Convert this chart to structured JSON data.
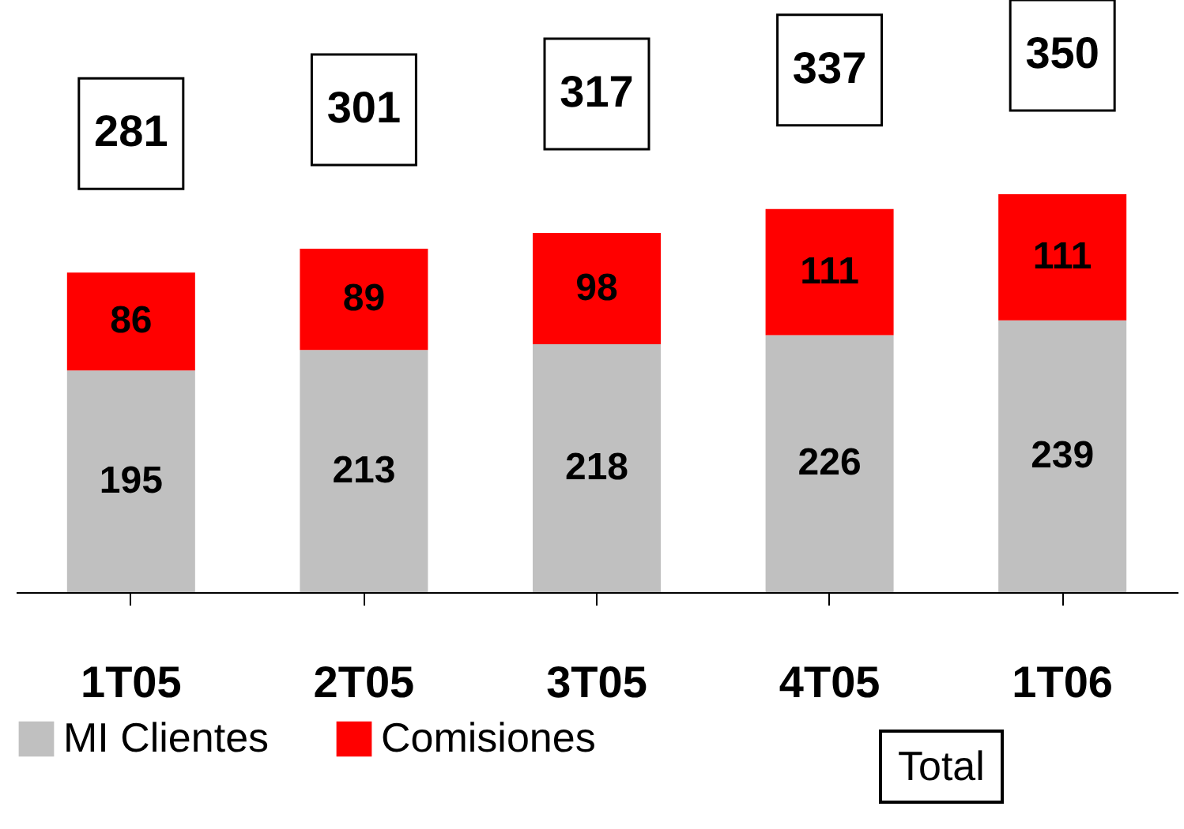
{
  "chart_data": {
    "type": "bar",
    "stacked": true,
    "categories": [
      "1T05",
      "2T05",
      "3T05",
      "4T05",
      "1T06"
    ],
    "series": [
      {
        "name": "MI Clientes",
        "color": "#c0c0c0",
        "values": [
          195,
          213,
          218,
          226,
          239
        ]
      },
      {
        "name": "Comisiones",
        "color": "#ff0000",
        "values": [
          86,
          89,
          98,
          111,
          111
        ]
      }
    ],
    "data_labels": true,
    "totals": [
      "281",
      "301",
      "317",
      "337",
      "350"
    ],
    "legend": "bottom",
    "annotations": [
      "Total"
    ]
  }
}
